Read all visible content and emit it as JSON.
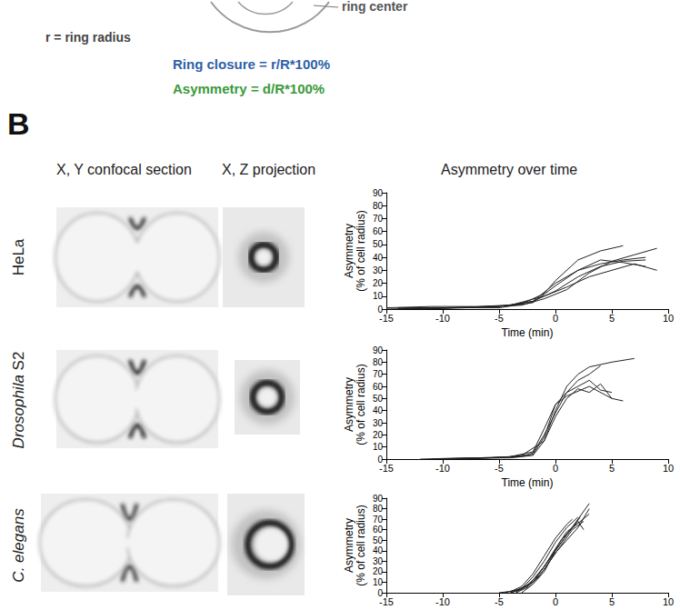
{
  "panel_a": {
    "labels": {
      "ring_center": "ring center",
      "ring_radius": "r = ring radius"
    },
    "formulas": {
      "ring_closure": "Ring closure = r/R*100%",
      "asymmetry": "Asymmetry = d/R*100%"
    }
  },
  "panel_b": {
    "label": "B",
    "columns": [
      "X, Y confocal section",
      "X, Z projection",
      "Asymmetry over time"
    ],
    "rows": [
      [
        {
          "text": "HeLa",
          "italic": false
        }
      ],
      [
        {
          "text": "Drosophila",
          "italic": true
        },
        {
          "text": " S2",
          "italic": false
        }
      ],
      [
        {
          "text": "C. elegans",
          "italic": true
        }
      ]
    ]
  },
  "chart_data": [
    {
      "type": "line",
      "xlabel": "Time (min)",
      "ylabel": "Asymmetry\n(% of cell radius)",
      "xlim": [
        -15,
        10
      ],
      "xticks": [
        -15,
        -10,
        -5,
        0,
        5,
        10
      ],
      "ylim": [
        0,
        90
      ],
      "yticks": [
        0,
        10,
        20,
        30,
        40,
        50,
        60,
        70,
        80,
        90
      ],
      "color": "#222222",
      "series": [
        {
          "x": [
            -15,
            -10,
            -5,
            -3,
            -1,
            0,
            2,
            4,
            6
          ],
          "values": [
            0,
            1,
            2,
            4,
            12,
            22,
            38,
            45,
            49
          ]
        },
        {
          "x": [
            -14,
            -10,
            -6,
            -3,
            -1,
            1,
            3,
            5,
            7,
            9
          ],
          "values": [
            1,
            1,
            2,
            3,
            8,
            15,
            28,
            37,
            42,
            47
          ]
        },
        {
          "x": [
            -13,
            -9,
            -5,
            -2,
            0,
            2,
            4,
            6,
            8
          ],
          "values": [
            0,
            1,
            1,
            5,
            18,
            30,
            35,
            38,
            40
          ]
        },
        {
          "x": [
            -12,
            -8,
            -4,
            -1,
            1,
            3,
            5,
            7,
            9
          ],
          "values": [
            0,
            1,
            3,
            10,
            17,
            25,
            30,
            35,
            30
          ]
        },
        {
          "x": [
            -15,
            -11,
            -7,
            -4,
            -2,
            0,
            2,
            4,
            6,
            8
          ],
          "values": [
            1,
            2,
            2,
            3,
            6,
            14,
            25,
            33,
            37,
            38
          ]
        },
        {
          "x": [
            -14,
            -9,
            -5,
            -2,
            0,
            2,
            4,
            6,
            8
          ],
          "values": [
            0,
            1,
            2,
            6,
            20,
            30,
            38,
            36,
            33
          ]
        }
      ]
    },
    {
      "type": "line",
      "xlabel": "Time (min)",
      "ylabel": "Asymmetry\n(% of cell radius)",
      "xlim": [
        -15,
        10
      ],
      "xticks": [
        -15,
        -10,
        -5,
        0,
        5,
        10
      ],
      "ylim": [
        0,
        90
      ],
      "yticks": [
        0,
        10,
        20,
        30,
        40,
        50,
        60,
        70,
        80,
        90
      ],
      "color": "#222222",
      "series": [
        {
          "x": [
            -12,
            -8,
            -4,
            -2,
            -1,
            0,
            1,
            2,
            3,
            5,
            7
          ],
          "values": [
            0,
            1,
            1,
            3,
            15,
            40,
            60,
            70,
            76,
            80,
            83
          ]
        },
        {
          "x": [
            -10,
            -6,
            -3,
            -2,
            -1,
            0,
            1,
            2,
            3,
            4
          ],
          "values": [
            0,
            1,
            2,
            5,
            20,
            38,
            55,
            65,
            70,
            77
          ]
        },
        {
          "x": [
            -9,
            -5,
            -3,
            -1,
            0,
            1,
            2,
            3,
            4,
            5
          ],
          "values": [
            0,
            1,
            3,
            15,
            35,
            50,
            58,
            55,
            62,
            50
          ]
        },
        {
          "x": [
            -8,
            -4,
            -2,
            -1,
            0,
            1,
            2,
            3,
            4,
            5
          ],
          "values": [
            0,
            2,
            4,
            18,
            45,
            55,
            60,
            65,
            57,
            55
          ]
        },
        {
          "x": [
            -11,
            -7,
            -4,
            -2,
            -1,
            0,
            1,
            3,
            5,
            6
          ],
          "values": [
            0,
            1,
            2,
            6,
            25,
            45,
            52,
            60,
            50,
            48
          ]
        }
      ]
    },
    {
      "type": "line",
      "ylabel": "Asymmetry\n(% of cell radius)",
      "xlim": [
        -15,
        10
      ],
      "xticks": [
        -15,
        -10,
        -5,
        0,
        5,
        10
      ],
      "ylim": [
        0,
        90
      ],
      "yticks": [
        0,
        10,
        20,
        30,
        40,
        50,
        60,
        70,
        80,
        90
      ],
      "color": "#222222",
      "series": [
        {
          "x": [
            -4,
            -3,
            -2,
            -1,
            0,
            1,
            2,
            3
          ],
          "values": [
            0,
            3,
            12,
            25,
            40,
            55,
            70,
            85
          ]
        },
        {
          "x": [
            -4.5,
            -3,
            -2,
            -1,
            0,
            1,
            2
          ],
          "values": [
            0,
            4,
            15,
            30,
            48,
            62,
            72
          ]
        },
        {
          "x": [
            -3.5,
            -2.5,
            -1.5,
            -0.5,
            0.5,
            1.5,
            2.5
          ],
          "values": [
            0,
            5,
            15,
            30,
            45,
            60,
            68
          ]
        },
        {
          "x": [
            -4,
            -3,
            -2,
            -1,
            0,
            1,
            1.5
          ],
          "values": [
            1,
            6,
            18,
            35,
            52,
            65,
            70
          ]
        },
        {
          "x": [
            -5,
            -3.5,
            -2,
            -1,
            0,
            1,
            2,
            3
          ],
          "values": [
            0,
            2,
            10,
            22,
            38,
            50,
            62,
            80
          ]
        },
        {
          "x": [
            -3,
            -2,
            -1,
            0,
            1,
            2,
            2.5
          ],
          "values": [
            0,
            8,
            20,
            40,
            55,
            68,
            60
          ]
        },
        {
          "x": [
            -4,
            -2.5,
            -1.5,
            -0.5,
            0.5,
            1.5,
            2.2
          ],
          "values": [
            0,
            6,
            18,
            32,
            50,
            62,
            72
          ]
        },
        {
          "x": [
            -3.5,
            -2,
            -1,
            0,
            1,
            2,
            3
          ],
          "values": [
            1,
            10,
            25,
            42,
            58,
            66,
            75
          ]
        }
      ]
    }
  ]
}
